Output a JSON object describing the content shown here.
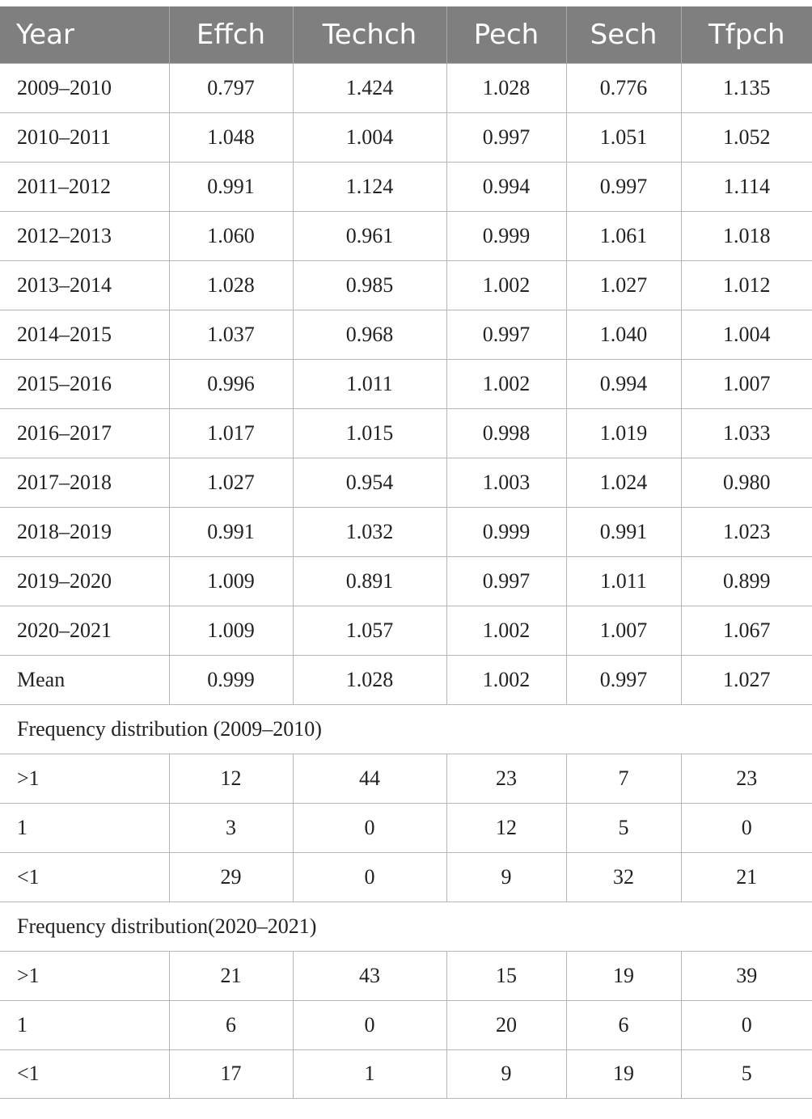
{
  "table": {
    "headers": [
      "Year",
      "Effch",
      "Techch",
      "Pech",
      "Sech",
      "Tfpch"
    ],
    "rows": [
      [
        "2009–2010",
        "0.797",
        "1.424",
        "1.028",
        "0.776",
        "1.135"
      ],
      [
        "2010–2011",
        "1.048",
        "1.004",
        "0.997",
        "1.051",
        "1.052"
      ],
      [
        "2011–2012",
        "0.991",
        "1.124",
        "0.994",
        "0.997",
        "1.114"
      ],
      [
        "2012–2013",
        "1.060",
        "0.961",
        "0.999",
        "1.061",
        "1.018"
      ],
      [
        "2013–2014",
        "1.028",
        "0.985",
        "1.002",
        "1.027",
        "1.012"
      ],
      [
        "2014–2015",
        "1.037",
        "0.968",
        "0.997",
        "1.040",
        "1.004"
      ],
      [
        "2015–2016",
        "0.996",
        "1.011",
        "1.002",
        "0.994",
        "1.007"
      ],
      [
        "2016–2017",
        "1.017",
        "1.015",
        "0.998",
        "1.019",
        "1.033"
      ],
      [
        "2017–2018",
        "1.027",
        "0.954",
        "1.003",
        "1.024",
        "0.980"
      ],
      [
        "2018–2019",
        "0.991",
        "1.032",
        "0.999",
        "0.991",
        "1.023"
      ],
      [
        "2019–2020",
        "1.009",
        "0.891",
        "0.997",
        "1.011",
        "0.899"
      ],
      [
        "2020–2021",
        "1.009",
        "1.057",
        "1.002",
        "1.007",
        "1.067"
      ],
      [
        "Mean",
        "0.999",
        "1.028",
        "1.002",
        "0.997",
        "1.027"
      ]
    ],
    "sections": [
      {
        "title": "Frequency distribution (2009–2010)",
        "rows": [
          [
            ">1",
            "12",
            "44",
            "23",
            "7",
            "23"
          ],
          [
            "1",
            "3",
            "0",
            "12",
            "5",
            "0"
          ],
          [
            "<1",
            "29",
            "0",
            "9",
            "32",
            "21"
          ]
        ]
      },
      {
        "title": "Frequency distribution(2020–2021)",
        "rows": [
          [
            ">1",
            "21",
            "43",
            "15",
            "19",
            "39"
          ],
          [
            "1",
            "6",
            "0",
            "20",
            "6",
            "0"
          ],
          [
            "<1",
            "17",
            "1",
            "9",
            "19",
            "5"
          ]
        ]
      }
    ]
  }
}
